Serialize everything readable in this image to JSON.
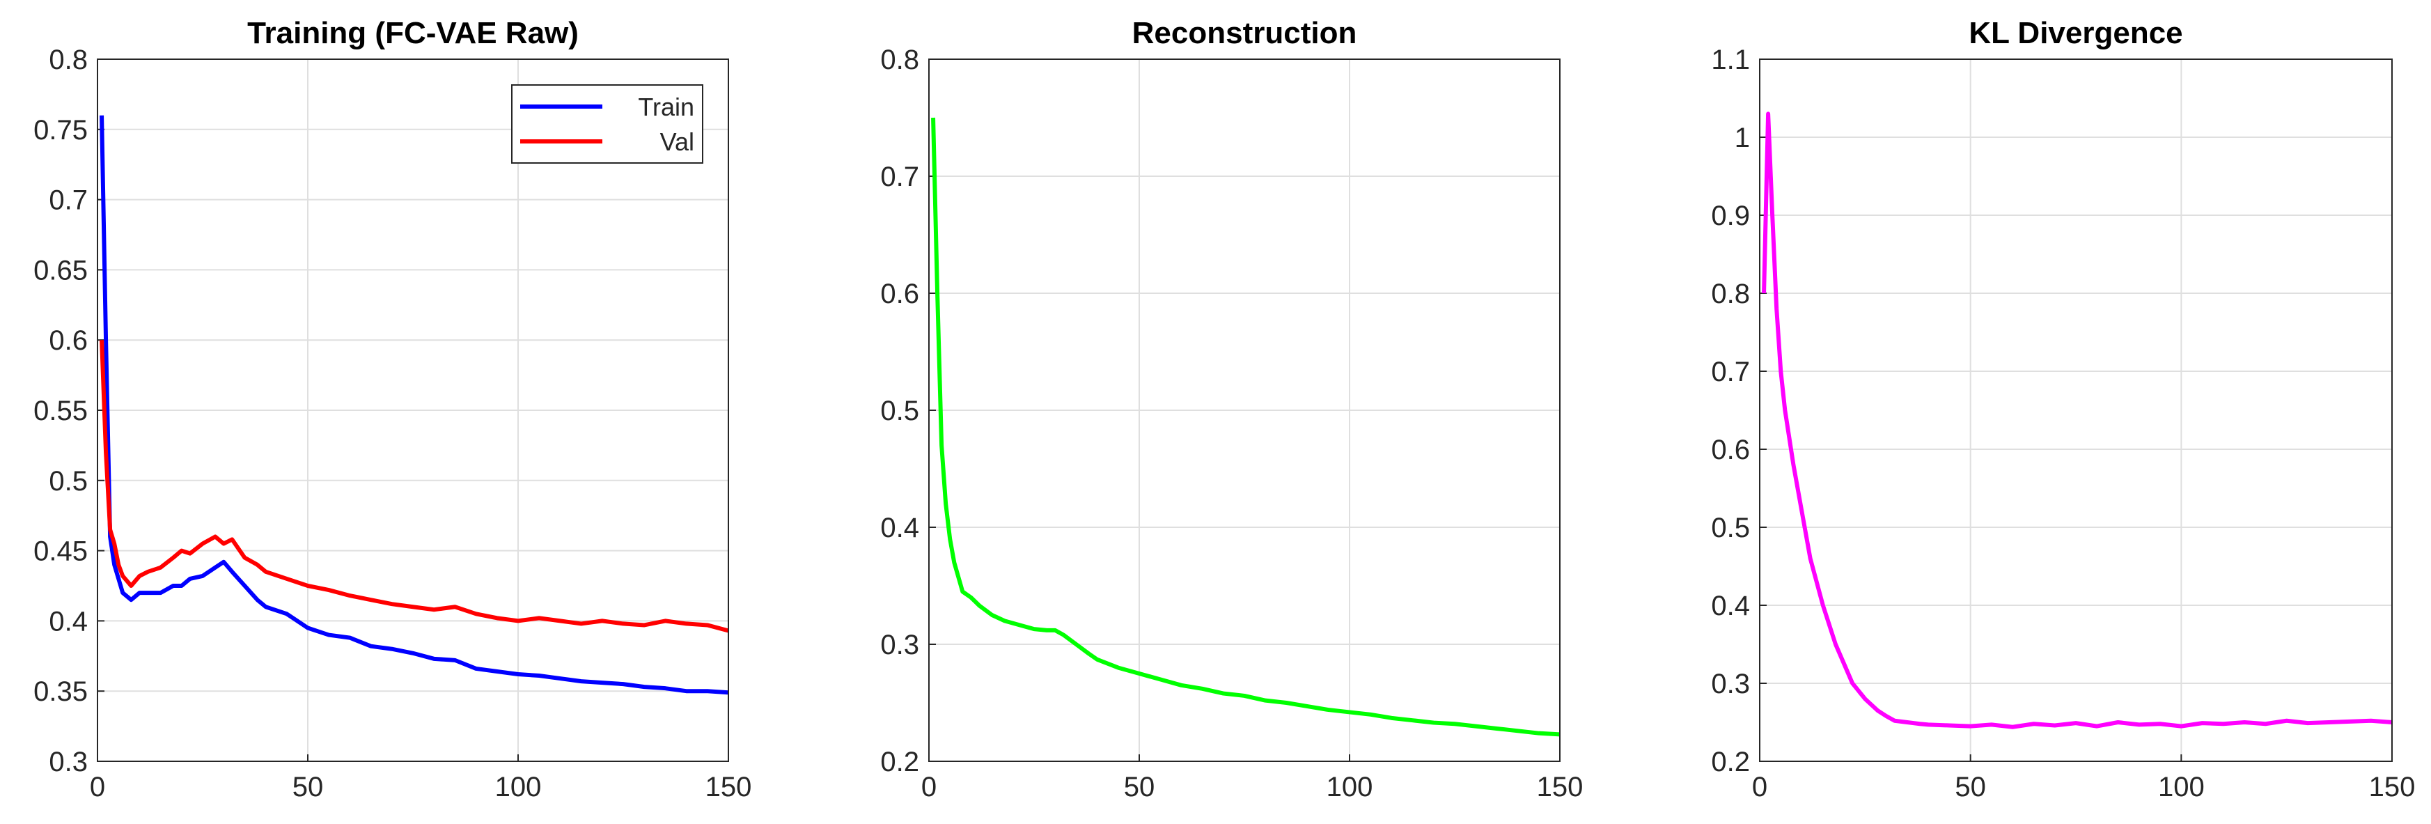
{
  "chart_data": [
    {
      "type": "line",
      "title": "Training (FC-VAE Raw)",
      "x": [
        1,
        2,
        3,
        4,
        5,
        6,
        8,
        10,
        12,
        15,
        18,
        20,
        22,
        25,
        28,
        30,
        32,
        35,
        38,
        40,
        45,
        50,
        55,
        60,
        65,
        70,
        75,
        80,
        85,
        90,
        95,
        100,
        105,
        110,
        115,
        120,
        125,
        130,
        135,
        140,
        145,
        150
      ],
      "series": [
        {
          "name": "Train",
          "color": "#0000ff",
          "values": [
            0.76,
            0.6,
            0.46,
            0.44,
            0.43,
            0.42,
            0.415,
            0.42,
            0.42,
            0.42,
            0.425,
            0.425,
            0.43,
            0.432,
            0.438,
            0.442,
            0.435,
            0.425,
            0.415,
            0.41,
            0.405,
            0.395,
            0.39,
            0.388,
            0.382,
            0.38,
            0.377,
            0.373,
            0.372,
            0.366,
            0.364,
            0.362,
            0.361,
            0.359,
            0.357,
            0.356,
            0.355,
            0.353,
            0.352,
            0.35,
            0.35,
            0.349
          ]
        },
        {
          "name": "Val",
          "color": "#ff0000",
          "values": [
            0.6,
            0.52,
            0.465,
            0.455,
            0.44,
            0.432,
            0.425,
            0.432,
            0.435,
            0.438,
            0.445,
            0.45,
            0.448,
            0.455,
            0.46,
            0.455,
            0.458,
            0.445,
            0.44,
            0.435,
            0.43,
            0.425,
            0.422,
            0.418,
            0.415,
            0.412,
            0.41,
            0.408,
            0.41,
            0.405,
            0.402,
            0.4,
            0.402,
            0.4,
            0.398,
            0.4,
            0.398,
            0.397,
            0.4,
            0.398,
            0.397,
            0.393
          ]
        }
      ],
      "xlim": [
        0,
        150
      ],
      "xticks": [
        0,
        50,
        100,
        150
      ],
      "ylim": [
        0.3,
        0.8
      ],
      "yticks": [
        0.3,
        0.35,
        0.4,
        0.45,
        0.5,
        0.55,
        0.6,
        0.65,
        0.7,
        0.75,
        0.8
      ],
      "grid": true,
      "legend": "upper right"
    },
    {
      "type": "line",
      "title": "Reconstruction",
      "x": [
        1,
        2,
        3,
        4,
        5,
        6,
        8,
        10,
        12,
        15,
        18,
        20,
        22,
        25,
        28,
        30,
        32,
        35,
        38,
        40,
        45,
        50,
        55,
        60,
        65,
        70,
        75,
        80,
        85,
        90,
        95,
        100,
        105,
        110,
        115,
        120,
        125,
        130,
        135,
        140,
        145,
        150
      ],
      "series": [
        {
          "color": "#00ff00",
          "values": [
            0.75,
            0.6,
            0.47,
            0.42,
            0.39,
            0.37,
            0.345,
            0.34,
            0.333,
            0.325,
            0.32,
            0.318,
            0.316,
            0.313,
            0.312,
            0.312,
            0.308,
            0.3,
            0.292,
            0.287,
            0.28,
            0.275,
            0.27,
            0.265,
            0.262,
            0.258,
            0.256,
            0.252,
            0.25,
            0.247,
            0.244,
            0.242,
            0.24,
            0.237,
            0.235,
            0.233,
            0.232,
            0.23,
            0.228,
            0.226,
            0.224,
            0.223
          ]
        }
      ],
      "xlim": [
        0,
        150
      ],
      "xticks": [
        0,
        50,
        100,
        150
      ],
      "ylim": [
        0.2,
        0.8
      ],
      "yticks": [
        0.2,
        0.3,
        0.4,
        0.5,
        0.6,
        0.7,
        0.8
      ],
      "grid": true
    },
    {
      "type": "line",
      "title": "KL Divergence",
      "x": [
        1,
        2,
        3,
        4,
        5,
        6,
        8,
        10,
        12,
        15,
        18,
        20,
        22,
        25,
        28,
        30,
        32,
        35,
        38,
        40,
        45,
        50,
        55,
        60,
        65,
        70,
        75,
        80,
        85,
        90,
        95,
        100,
        105,
        110,
        115,
        120,
        125,
        130,
        135,
        140,
        145,
        150
      ],
      "series": [
        {
          "color": "#ff00ff",
          "values": [
            0.8,
            1.03,
            0.9,
            0.78,
            0.7,
            0.65,
            0.58,
            0.52,
            0.46,
            0.4,
            0.35,
            0.325,
            0.3,
            0.28,
            0.265,
            0.258,
            0.252,
            0.25,
            0.248,
            0.247,
            0.246,
            0.245,
            0.247,
            0.244,
            0.248,
            0.246,
            0.249,
            0.245,
            0.25,
            0.247,
            0.248,
            0.245,
            0.249,
            0.248,
            0.25,
            0.248,
            0.252,
            0.249,
            0.25,
            0.251,
            0.252,
            0.25
          ]
        }
      ],
      "xlim": [
        0,
        150
      ],
      "xticks": [
        0,
        50,
        100,
        150
      ],
      "ylim": [
        0.2,
        1.1
      ],
      "yticks": [
        0.2,
        0.3,
        0.4,
        0.5,
        0.6,
        0.7,
        0.8,
        0.9,
        1,
        1.1
      ],
      "grid": true
    }
  ]
}
